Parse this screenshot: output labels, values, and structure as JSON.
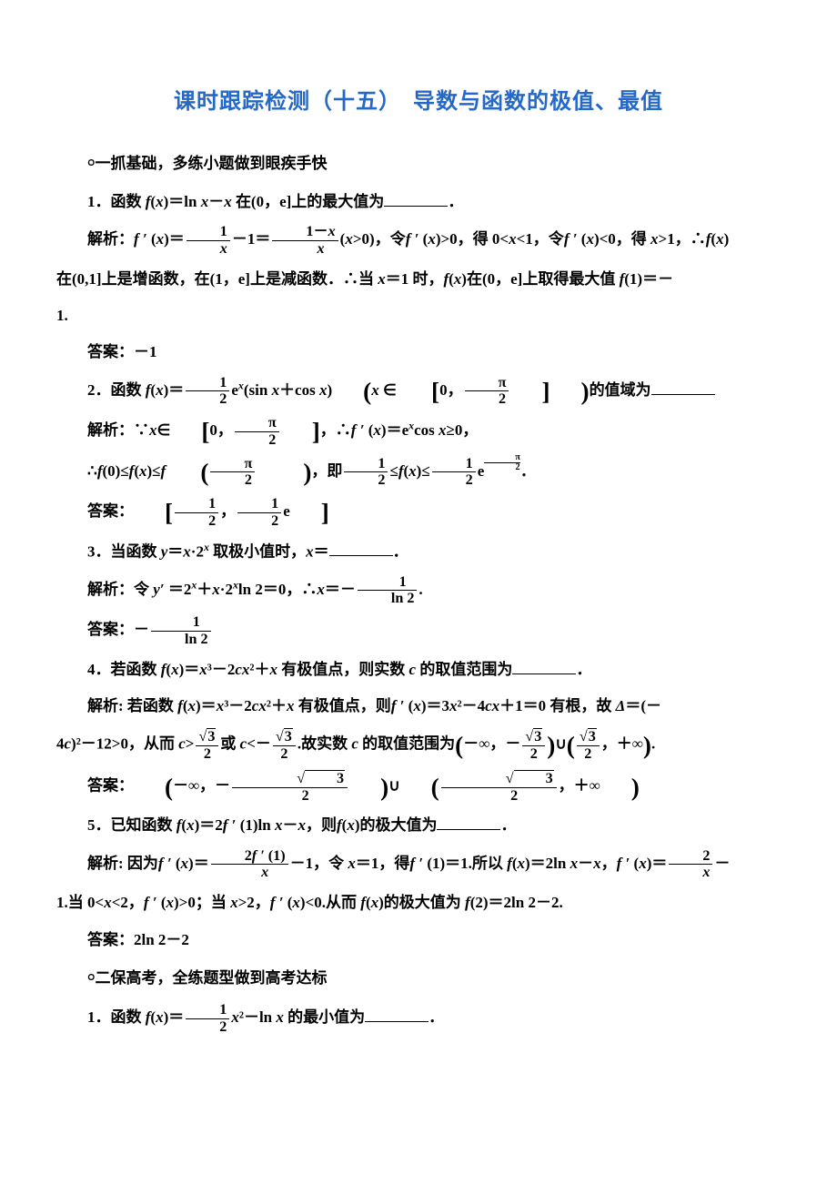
{
  "title": "课时跟踪检测（十五）　导数与函数的极值、最值",
  "section1": {
    "head": "￮一抓基础，多练小题做到眼疾手快",
    "q1": {
      "stem_pre": "1．函数",
      "stem_fn": "f(x)＝ln x－x",
      "stem_post": "在(0，e]上的最大值为",
      "sol_label": "解析：",
      "ans_label": "答案：",
      "ans_val": "－1"
    },
    "q2": {
      "stem_pre": "2．函数",
      "stem_post": "的值域为",
      "sol_label": "解析：",
      "ans_label": "答案："
    },
    "q3": {
      "stem_pre": "3．当函数",
      "stem_fn": "y＝x·2",
      "stem_post": "取极小值时，x＝",
      "sol_label": "解析：",
      "sol_pre": "令",
      "ans_label": "答案："
    },
    "q4": {
      "stem_pre": "4．若函数",
      "stem_fn": "f(x)＝x³－2cx²＋x",
      "stem_post": "有极值点，则实数 c 的取值范围为",
      "sol_label": "解析:",
      "ans_label": "答案："
    },
    "q5": {
      "stem_pre": "5．已知函数",
      "stem_fn": "f(x)＝2f′ (1)ln x－x",
      "stem_mid": "，则",
      "stem_fx": "f(x)",
      "stem_post": "的极大值为",
      "sol_label": "解析:",
      "ans_label": "答案：",
      "ans_val": "2ln 2－2"
    }
  },
  "section2": {
    "head": "￮二保高考，全练题型做到高考达标",
    "q1": {
      "stem_pre": "1．函数",
      "stem_post": "的最小值为"
    }
  },
  "labels": {
    "sol_prefix": "解析：",
    "ans_prefix": "答案："
  }
}
